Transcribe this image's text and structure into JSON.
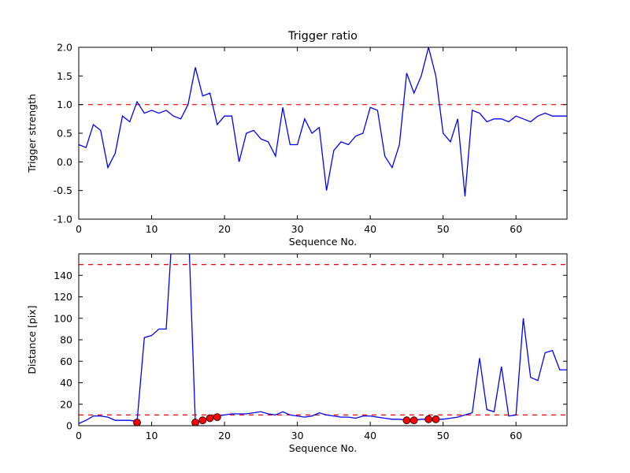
{
  "figure": {
    "background": "#ffffff",
    "axes_edge_color": "#000000",
    "tick_color": "#000000"
  },
  "chart_data": [
    {
      "type": "line",
      "title": "Trigger ratio",
      "xlabel": "Sequence No.",
      "ylabel": "Trigger strength",
      "xlim": [
        0,
        67
      ],
      "ylim": [
        -1.0,
        2.0
      ],
      "grid": false,
      "legend": null,
      "line_color": "#0000ff",
      "xticks": [
        0,
        10,
        20,
        30,
        40,
        50,
        60
      ],
      "xtick_labels": [
        "0",
        "10",
        "20",
        "30",
        "40",
        "50",
        "60"
      ],
      "yticks": [
        -1.0,
        -0.5,
        0.0,
        0.5,
        1.0,
        1.5,
        2.0
      ],
      "ytick_labels": [
        "-1.0",
        "-0.5",
        "0.0",
        "0.5",
        "1.0",
        "1.5",
        "2.0"
      ],
      "thresholds": [
        {
          "y": 1.0,
          "color": "#ff0000",
          "style": "dashed"
        }
      ],
      "x": [
        0,
        1,
        2,
        3,
        4,
        5,
        6,
        7,
        8,
        9,
        10,
        11,
        12,
        13,
        14,
        15,
        16,
        17,
        18,
        19,
        20,
        21,
        22,
        23,
        24,
        25,
        26,
        27,
        28,
        29,
        30,
        31,
        32,
        33,
        34,
        35,
        36,
        37,
        38,
        39,
        40,
        41,
        42,
        43,
        44,
        45,
        46,
        47,
        48,
        49,
        50,
        51,
        52,
        53,
        54,
        55,
        56,
        57,
        58,
        59,
        60,
        61,
        62,
        63,
        64,
        65,
        66,
        67
      ],
      "y": [
        0.3,
        0.25,
        0.65,
        0.55,
        -0.1,
        0.15,
        0.8,
        0.7,
        1.05,
        0.85,
        0.9,
        0.85,
        0.9,
        0.8,
        0.75,
        1.0,
        1.65,
        1.15,
        1.2,
        0.65,
        0.8,
        0.8,
        0.0,
        0.5,
        0.55,
        0.4,
        0.35,
        0.1,
        0.95,
        0.3,
        0.3,
        0.75,
        0.5,
        0.6,
        -0.5,
        0.2,
        0.35,
        0.3,
        0.45,
        0.5,
        0.95,
        0.9,
        0.1,
        -0.1,
        0.3,
        1.55,
        1.2,
        1.5,
        2.0,
        1.5,
        0.5,
        0.35,
        0.75,
        -0.6,
        0.9,
        0.85,
        0.7,
        0.75,
        0.75,
        0.7,
        0.8,
        0.75,
        0.7,
        0.8,
        0.85,
        0.8,
        0.8,
        0.8
      ]
    },
    {
      "type": "line",
      "title": "",
      "xlabel": "Sequence No.",
      "ylabel": "Distance [pix]",
      "xlim": [
        0,
        67
      ],
      "ylim": [
        0,
        160
      ],
      "grid": false,
      "legend": null,
      "line_color": "#0000ff",
      "xticks": [
        0,
        10,
        20,
        30,
        40,
        50,
        60
      ],
      "xtick_labels": [
        "0",
        "10",
        "20",
        "30",
        "40",
        "50",
        "60"
      ],
      "yticks": [
        0,
        20,
        40,
        60,
        80,
        100,
        120,
        140
      ],
      "ytick_labels": [
        "0",
        "20",
        "40",
        "60",
        "80",
        "100",
        "120",
        "140"
      ],
      "thresholds": [
        {
          "y": 150,
          "color": "#ff0000",
          "style": "dashed"
        },
        {
          "y": 10,
          "color": "#ff0000",
          "style": "dashed"
        }
      ],
      "x": [
        0,
        1,
        2,
        3,
        4,
        5,
        6,
        7,
        8,
        9,
        10,
        11,
        12,
        13,
        14,
        15,
        16,
        17,
        18,
        19,
        20,
        21,
        22,
        23,
        24,
        25,
        26,
        27,
        28,
        29,
        30,
        31,
        32,
        33,
        34,
        35,
        36,
        37,
        38,
        39,
        40,
        41,
        42,
        43,
        44,
        45,
        46,
        47,
        48,
        49,
        50,
        51,
        52,
        53,
        54,
        55,
        56,
        57,
        58,
        59,
        60,
        61,
        62,
        63,
        64,
        65,
        66,
        67
      ],
      "y": [
        2,
        5,
        9,
        9,
        8,
        5,
        5,
        5,
        4,
        82,
        84,
        90,
        90,
        200,
        205,
        195,
        3,
        6,
        8,
        9,
        10,
        11,
        11,
        11,
        12,
        13,
        11,
        10,
        13,
        10,
        9,
        8,
        9,
        12,
        10,
        9,
        8,
        8,
        7,
        9,
        9,
        8,
        7,
        6,
        6,
        5,
        5,
        6,
        6,
        6,
        6,
        7,
        8,
        10,
        12,
        63,
        15,
        13,
        55,
        9,
        10,
        100,
        45,
        42,
        68,
        70,
        52,
        52
      ],
      "scatter": {
        "marker": "circle",
        "color": "#ff0000",
        "edge_color": "#000000",
        "x": [
          8,
          16,
          17,
          18,
          19,
          45,
          46,
          48,
          49
        ],
        "y": [
          3,
          3,
          5,
          7,
          8,
          5,
          5,
          6,
          6
        ]
      }
    }
  ]
}
